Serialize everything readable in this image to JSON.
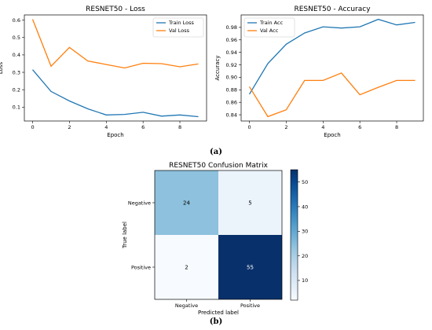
{
  "panel_labels": [
    "(a)",
    "(b)"
  ],
  "chart_data": [
    {
      "type": "line",
      "title": "RESNET50 - Loss",
      "xlabel": "Epoch",
      "ylabel": "Loss",
      "x": [
        0,
        1,
        2,
        3,
        4,
        5,
        6,
        7,
        8,
        9
      ],
      "xlim": [
        -0.45,
        9.45
      ],
      "ylim": [
        0.02,
        0.63
      ],
      "xticks": [
        0,
        2,
        4,
        6,
        8
      ],
      "yticks": [
        0.1,
        0.2,
        0.3,
        0.4,
        0.5,
        0.6
      ],
      "grid": false,
      "legend_position": "top-right",
      "series": [
        {
          "name": "Train Loss",
          "color": "#1f77b4",
          "values": [
            0.315,
            0.19,
            0.135,
            0.09,
            0.055,
            0.058,
            0.07,
            0.048,
            0.055,
            0.045
          ]
        },
        {
          "name": "Val Loss",
          "color": "#ff7f0e",
          "values": [
            0.605,
            0.335,
            0.443,
            0.365,
            0.345,
            0.325,
            0.352,
            0.35,
            0.332,
            0.348
          ]
        }
      ]
    },
    {
      "type": "line",
      "title": "RESNET50 - Accuracy",
      "xlabel": "Epoch",
      "ylabel": "Accuracy",
      "x": [
        0,
        1,
        2,
        3,
        4,
        5,
        6,
        7,
        8,
        9
      ],
      "xlim": [
        -0.45,
        9.45
      ],
      "ylim": [
        0.83,
        1.0
      ],
      "xticks": [
        0,
        2,
        4,
        6,
        8
      ],
      "yticks": [
        0.84,
        0.86,
        0.88,
        0.9,
        0.92,
        0.94,
        0.96,
        0.98
      ],
      "grid": false,
      "legend_position": "top-left",
      "series": [
        {
          "name": "Train Acc",
          "color": "#1f77b4",
          "values": [
            0.873,
            0.922,
            0.953,
            0.971,
            0.981,
            0.979,
            0.981,
            0.993,
            0.984,
            0.988
          ]
        },
        {
          "name": "Val Acc",
          "color": "#ff7f0e",
          "values": [
            0.885,
            0.837,
            0.848,
            0.895,
            0.895,
            0.907,
            0.872,
            0.884,
            0.895,
            0.895
          ]
        }
      ]
    },
    {
      "type": "heatmap",
      "title": "RESNET50 Confusion Matrix",
      "xlabel": "Predicted label",
      "ylabel": "True label",
      "row_labels": [
        "Negative",
        "Positive"
      ],
      "col_labels": [
        "Negative",
        "Positive"
      ],
      "values": [
        [
          24,
          5
        ],
        [
          2,
          55
        ]
      ],
      "colormap": "Blues",
      "colorbar_range": [
        2,
        55
      ],
      "colorbar_ticks": [
        10,
        20,
        30,
        40,
        50
      ]
    }
  ]
}
